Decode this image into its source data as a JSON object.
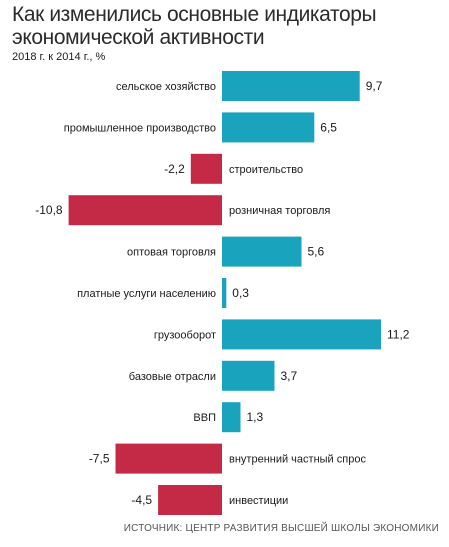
{
  "title": "Как изменились основные индикаторы экономической активности",
  "subtitle": "2018 г. к 2014 г., %",
  "source": "ИСТОЧНИК: ЦЕНТР РАЗВИТИЯ ВЫСШЕЙ ШКОЛЫ ЭКОНОМИКИ",
  "colors": {
    "positive": "#1aa3bd",
    "negative": "#c42a45"
  },
  "chart_data": {
    "type": "bar",
    "orientation": "horizontal",
    "categories": [
      "сельское хозяйство",
      "промышленное производство",
      "строительство",
      "розничная торговля",
      "оптовая торговля",
      "платные услуги населению",
      "грузооборот",
      "базовые отрасли",
      "ВВП",
      "внутренний частный спрос",
      "инвестиции"
    ],
    "values": [
      9.7,
      6.5,
      -2.2,
      -10.8,
      5.6,
      0.3,
      11.2,
      3.7,
      1.3,
      -7.5,
      -4.5
    ],
    "value_labels": [
      "9,7",
      "6,5",
      "-2,2",
      "-10,8",
      "5,6",
      "0,3",
      "11,2",
      "3,7",
      "1,3",
      "-7,5",
      "-4,5"
    ],
    "xlim": [
      -10.8,
      11.2
    ],
    "grid": false,
    "legend": "none"
  }
}
